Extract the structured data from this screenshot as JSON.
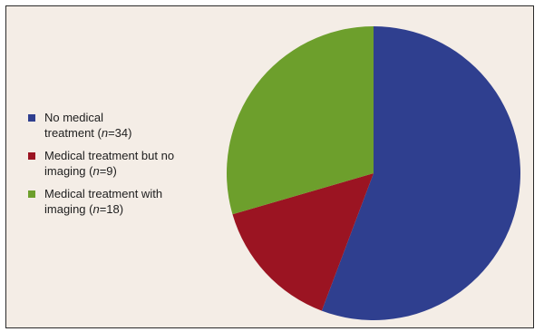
{
  "chart_data": {
    "type": "pie",
    "title": "",
    "slices": [
      {
        "label_line1": "No medical",
        "label_line2_pre": "treatment (",
        "label_n": "n",
        "label_eq": "=34)",
        "value": 34,
        "color": "#2f3f8f"
      },
      {
        "label_line1": "Medical treatment but no",
        "label_line2_pre": "imaging (",
        "label_n": "n",
        "label_eq": "=9)",
        "value": 9,
        "color": "#9b1422"
      },
      {
        "label_line1": "Medical treatment with",
        "label_line2_pre": "imaging (",
        "label_n": "n",
        "label_eq": "=18)",
        "value": 18,
        "color": "#6d9f2c"
      }
    ],
    "start": "12 o'clock",
    "direction": "clockwise",
    "legend_position": "left"
  }
}
